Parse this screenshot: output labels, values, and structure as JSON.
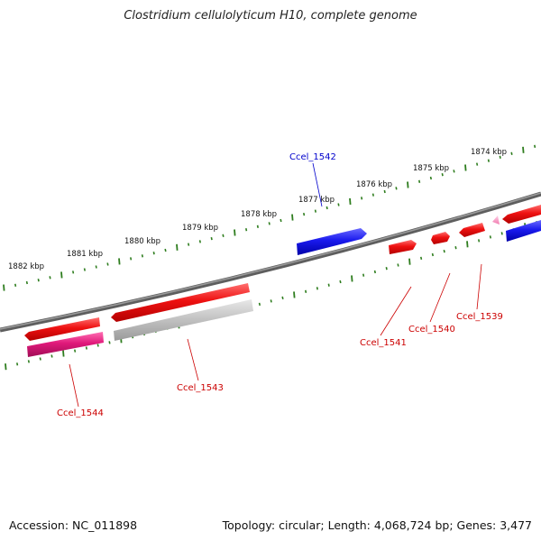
{
  "title": "Clostridium cellulolyticum H10, complete genome",
  "footer": {
    "accession": "Accession: NC_011898",
    "summary": "Topology: circular; Length: 4,068,724 bp; Genes: 3,477"
  },
  "colors": {
    "backbone": "#7a7a7a",
    "tick": "#2e7d1e",
    "forward_gene": "#ee1111",
    "reverse_gene": "#1a1aee",
    "pseudo_gene": "#c4c4c4",
    "rna_gene": "#e0197a",
    "forward_label": "#cc0000",
    "reverse_label": "#0000cc"
  },
  "scale_labels": [
    "1882 kbp",
    "1881 kbp",
    "1880 kbp",
    "1879 kbp",
    "1878 kbp",
    "1877 kbp",
    "1876 kbp",
    "1875 kbp",
    "1874 kbp"
  ],
  "gene_labels": {
    "ccel_1542": "Ccel_1542",
    "ccel_1544": "Ccel_1544",
    "ccel_1543": "Ccel_1543",
    "ccel_1541": "Ccel_1541",
    "ccel_1540": "Ccel_1540",
    "ccel_1539": "Ccel_1539"
  }
}
